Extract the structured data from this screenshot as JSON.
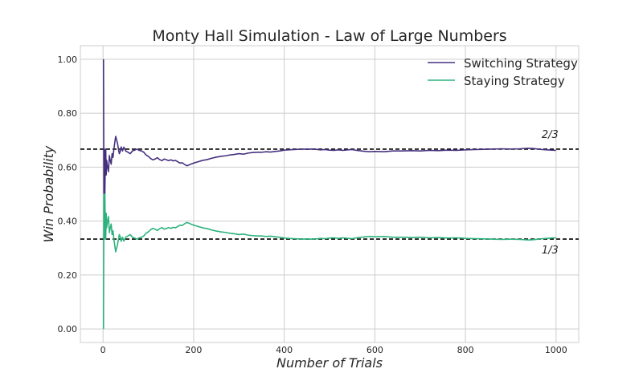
{
  "chart_data": {
    "type": "line",
    "title": "Monty Hall Simulation - Law of Large Numbers",
    "xlabel": "Number of Trials",
    "ylabel": "Win Probability",
    "xlim": [
      -50,
      1050
    ],
    "ylim": [
      -0.05,
      1.05
    ],
    "xticks": [
      0,
      200,
      400,
      600,
      800,
      1000
    ],
    "xtick_labels": [
      "0",
      "200",
      "400",
      "600",
      "800",
      "1000"
    ],
    "yticks": [
      0.0,
      0.2,
      0.4,
      0.6,
      0.8,
      1.0
    ],
    "ytick_labels": [
      "0.00",
      "0.20",
      "0.40",
      "0.60",
      "0.80",
      "1.00"
    ],
    "grid": true,
    "legend_position": "top-right",
    "series": [
      {
        "name": "Switching Strategy",
        "color": "#46307e",
        "points": [
          [
            1,
            1.0
          ],
          [
            2,
            0.5
          ],
          [
            3,
            0.667
          ],
          [
            4,
            0.5
          ],
          [
            5,
            0.6
          ],
          [
            6,
            0.667
          ],
          [
            7,
            0.571
          ],
          [
            8,
            0.625
          ],
          [
            10,
            0.6
          ],
          [
            12,
            0.583
          ],
          [
            14,
            0.643
          ],
          [
            16,
            0.625
          ],
          [
            18,
            0.611
          ],
          [
            20,
            0.65
          ],
          [
            22,
            0.636
          ],
          [
            24,
            0.667
          ],
          [
            26,
            0.692
          ],
          [
            28,
            0.714
          ],
          [
            30,
            0.7
          ],
          [
            32,
            0.688
          ],
          [
            34,
            0.667
          ],
          [
            36,
            0.65
          ],
          [
            38,
            0.658
          ],
          [
            40,
            0.675
          ],
          [
            43,
            0.66
          ],
          [
            46,
            0.674
          ],
          [
            50,
            0.66
          ],
          [
            55,
            0.655
          ],
          [
            60,
            0.65
          ],
          [
            65,
            0.66
          ],
          [
            70,
            0.663
          ],
          [
            75,
            0.667
          ],
          [
            80,
            0.662
          ],
          [
            85,
            0.66
          ],
          [
            90,
            0.655
          ],
          [
            95,
            0.645
          ],
          [
            100,
            0.64
          ],
          [
            105,
            0.632
          ],
          [
            110,
            0.627
          ],
          [
            115,
            0.63
          ],
          [
            120,
            0.635
          ],
          [
            125,
            0.628
          ],
          [
            130,
            0.624
          ],
          [
            135,
            0.63
          ],
          [
            140,
            0.627
          ],
          [
            145,
            0.624
          ],
          [
            150,
            0.627
          ],
          [
            155,
            0.623
          ],
          [
            160,
            0.625
          ],
          [
            165,
            0.62
          ],
          [
            170,
            0.615
          ],
          [
            175,
            0.616
          ],
          [
            180,
            0.61
          ],
          [
            185,
            0.605
          ],
          [
            190,
            0.608
          ],
          [
            195,
            0.612
          ],
          [
            200,
            0.615
          ],
          [
            210,
            0.62
          ],
          [
            220,
            0.625
          ],
          [
            230,
            0.628
          ],
          [
            240,
            0.633
          ],
          [
            250,
            0.637
          ],
          [
            260,
            0.64
          ],
          [
            270,
            0.642
          ],
          [
            280,
            0.645
          ],
          [
            290,
            0.647
          ],
          [
            300,
            0.65
          ],
          [
            310,
            0.648
          ],
          [
            320,
            0.652
          ],
          [
            330,
            0.654
          ],
          [
            340,
            0.655
          ],
          [
            350,
            0.655
          ],
          [
            360,
            0.657
          ],
          [
            370,
            0.656
          ],
          [
            380,
            0.658
          ],
          [
            390,
            0.66
          ],
          [
            400,
            0.663
          ],
          [
            410,
            0.664
          ],
          [
            420,
            0.665
          ],
          [
            430,
            0.666
          ],
          [
            440,
            0.667
          ],
          [
            450,
            0.666
          ],
          [
            460,
            0.667
          ],
          [
            470,
            0.666
          ],
          [
            480,
            0.664
          ],
          [
            490,
            0.665
          ],
          [
            500,
            0.663
          ],
          [
            510,
            0.662
          ],
          [
            520,
            0.664
          ],
          [
            530,
            0.662
          ],
          [
            540,
            0.664
          ],
          [
            550,
            0.665
          ],
          [
            560,
            0.662
          ],
          [
            570,
            0.66
          ],
          [
            580,
            0.658
          ],
          [
            590,
            0.657
          ],
          [
            600,
            0.658
          ],
          [
            620,
            0.657
          ],
          [
            640,
            0.66
          ],
          [
            660,
            0.66
          ],
          [
            680,
            0.661
          ],
          [
            700,
            0.66
          ],
          [
            720,
            0.662
          ],
          [
            740,
            0.661
          ],
          [
            760,
            0.663
          ],
          [
            780,
            0.662
          ],
          [
            800,
            0.664
          ],
          [
            820,
            0.665
          ],
          [
            840,
            0.666
          ],
          [
            860,
            0.667
          ],
          [
            880,
            0.668
          ],
          [
            900,
            0.667
          ],
          [
            920,
            0.668
          ],
          [
            940,
            0.67
          ],
          [
            950,
            0.669
          ],
          [
            960,
            0.667
          ],
          [
            970,
            0.665
          ],
          [
            980,
            0.664
          ],
          [
            990,
            0.663
          ],
          [
            1000,
            0.662
          ]
        ]
      },
      {
        "name": "Staying Strategy",
        "color": "#2db27d",
        "points": [
          [
            1,
            0.0
          ],
          [
            2,
            0.5
          ],
          [
            3,
            0.333
          ],
          [
            4,
            0.5
          ],
          [
            5,
            0.4
          ],
          [
            6,
            0.333
          ],
          [
            7,
            0.429
          ],
          [
            8,
            0.375
          ],
          [
            10,
            0.4
          ],
          [
            12,
            0.417
          ],
          [
            14,
            0.357
          ],
          [
            16,
            0.375
          ],
          [
            18,
            0.389
          ],
          [
            20,
            0.35
          ],
          [
            22,
            0.364
          ],
          [
            24,
            0.333
          ],
          [
            26,
            0.308
          ],
          [
            28,
            0.286
          ],
          [
            30,
            0.3
          ],
          [
            32,
            0.313
          ],
          [
            34,
            0.333
          ],
          [
            36,
            0.35
          ],
          [
            38,
            0.342
          ],
          [
            40,
            0.325
          ],
          [
            43,
            0.34
          ],
          [
            46,
            0.326
          ],
          [
            50,
            0.34
          ],
          [
            55,
            0.345
          ],
          [
            60,
            0.35
          ],
          [
            65,
            0.34
          ],
          [
            70,
            0.337
          ],
          [
            75,
            0.333
          ],
          [
            80,
            0.338
          ],
          [
            85,
            0.34
          ],
          [
            90,
            0.345
          ],
          [
            95,
            0.355
          ],
          [
            100,
            0.36
          ],
          [
            105,
            0.368
          ],
          [
            110,
            0.373
          ],
          [
            115,
            0.37
          ],
          [
            120,
            0.365
          ],
          [
            125,
            0.372
          ],
          [
            130,
            0.376
          ],
          [
            135,
            0.37
          ],
          [
            140,
            0.373
          ],
          [
            145,
            0.376
          ],
          [
            150,
            0.373
          ],
          [
            155,
            0.377
          ],
          [
            160,
            0.375
          ],
          [
            165,
            0.38
          ],
          [
            170,
            0.385
          ],
          [
            175,
            0.384
          ],
          [
            180,
            0.39
          ],
          [
            185,
            0.395
          ],
          [
            190,
            0.392
          ],
          [
            195,
            0.388
          ],
          [
            200,
            0.385
          ],
          [
            210,
            0.38
          ],
          [
            220,
            0.375
          ],
          [
            230,
            0.372
          ],
          [
            240,
            0.367
          ],
          [
            250,
            0.363
          ],
          [
            260,
            0.36
          ],
          [
            270,
            0.358
          ],
          [
            280,
            0.355
          ],
          [
            290,
            0.353
          ],
          [
            300,
            0.35
          ],
          [
            310,
            0.352
          ],
          [
            320,
            0.348
          ],
          [
            330,
            0.346
          ],
          [
            340,
            0.345
          ],
          [
            350,
            0.345
          ],
          [
            360,
            0.343
          ],
          [
            370,
            0.344
          ],
          [
            380,
            0.342
          ],
          [
            390,
            0.34
          ],
          [
            400,
            0.337
          ],
          [
            410,
            0.336
          ],
          [
            420,
            0.335
          ],
          [
            430,
            0.334
          ],
          [
            440,
            0.333
          ],
          [
            450,
            0.334
          ],
          [
            460,
            0.333
          ],
          [
            470,
            0.334
          ],
          [
            480,
            0.336
          ],
          [
            490,
            0.335
          ],
          [
            500,
            0.337
          ],
          [
            510,
            0.338
          ],
          [
            520,
            0.336
          ],
          [
            530,
            0.338
          ],
          [
            540,
            0.336
          ],
          [
            550,
            0.335
          ],
          [
            560,
            0.338
          ],
          [
            570,
            0.34
          ],
          [
            580,
            0.342
          ],
          [
            590,
            0.343
          ],
          [
            600,
            0.342
          ],
          [
            620,
            0.343
          ],
          [
            640,
            0.34
          ],
          [
            660,
            0.34
          ],
          [
            680,
            0.339
          ],
          [
            700,
            0.34
          ],
          [
            720,
            0.338
          ],
          [
            740,
            0.339
          ],
          [
            760,
            0.337
          ],
          [
            780,
            0.338
          ],
          [
            800,
            0.336
          ],
          [
            820,
            0.335
          ],
          [
            840,
            0.334
          ],
          [
            860,
            0.333
          ],
          [
            880,
            0.332
          ],
          [
            900,
            0.333
          ],
          [
            920,
            0.332
          ],
          [
            940,
            0.33
          ],
          [
            950,
            0.331
          ],
          [
            960,
            0.333
          ],
          [
            970,
            0.335
          ],
          [
            980,
            0.336
          ],
          [
            990,
            0.337
          ],
          [
            1000,
            0.338
          ]
        ]
      }
    ],
    "reference_lines": [
      {
        "y": 0.6667,
        "label": "2/3",
        "label_position": "above",
        "style": "dashed",
        "color": "#000000"
      },
      {
        "y": 0.3333,
        "label": "1/3",
        "label_position": "below",
        "style": "dashed",
        "color": "#000000"
      }
    ]
  }
}
